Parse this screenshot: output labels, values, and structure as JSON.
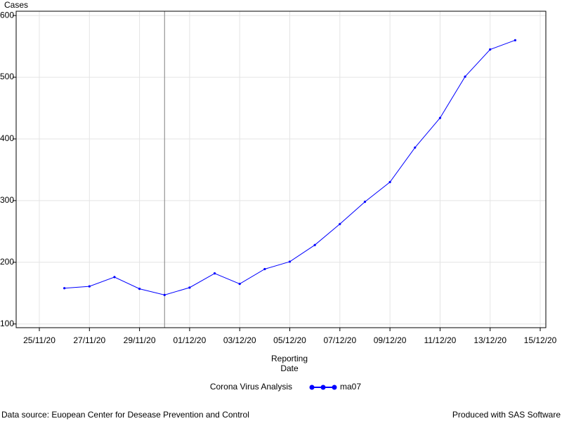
{
  "chart_data": {
    "type": "line",
    "y_label": "Cases",
    "x_label": [
      "Reporting",
      "Date"
    ],
    "legend_title": "Corona Virus Analysis",
    "footnote_left": "Data source: Euopean Center for Desease Prevention and Control",
    "footnote_right": "Produced with SAS Software",
    "x": [
      "26/11/20",
      "27/11/20",
      "28/11/20",
      "29/11/20",
      "30/11/20",
      "01/12/20",
      "02/12/20",
      "03/12/20",
      "04/12/20",
      "05/12/20",
      "06/12/20",
      "07/12/20",
      "08/12/20",
      "09/12/20",
      "10/12/20",
      "11/12/20",
      "12/12/20",
      "13/12/20",
      "14/12/20"
    ],
    "series": [
      {
        "name": "ma07",
        "color": "#0000ff",
        "values": [
          158,
          161,
          176,
          157,
          147,
          159,
          182,
          165,
          189,
          201,
          228,
          262,
          298,
          330,
          386,
          434,
          501,
          545,
          560
        ]
      }
    ],
    "xlim": [
      "25/11/20",
      "15/12/20"
    ],
    "xticks": [
      "25/11/20",
      "27/11/20",
      "29/11/20",
      "01/12/20",
      "03/12/20",
      "05/12/20",
      "07/12/20",
      "09/12/20",
      "11/12/20",
      "13/12/20",
      "15/12/20"
    ],
    "ylim": [
      94,
      607
    ],
    "yticks": [
      100,
      200,
      300,
      400,
      500,
      600
    ],
    "reference_line_x": "30/11/20",
    "grid": true
  }
}
